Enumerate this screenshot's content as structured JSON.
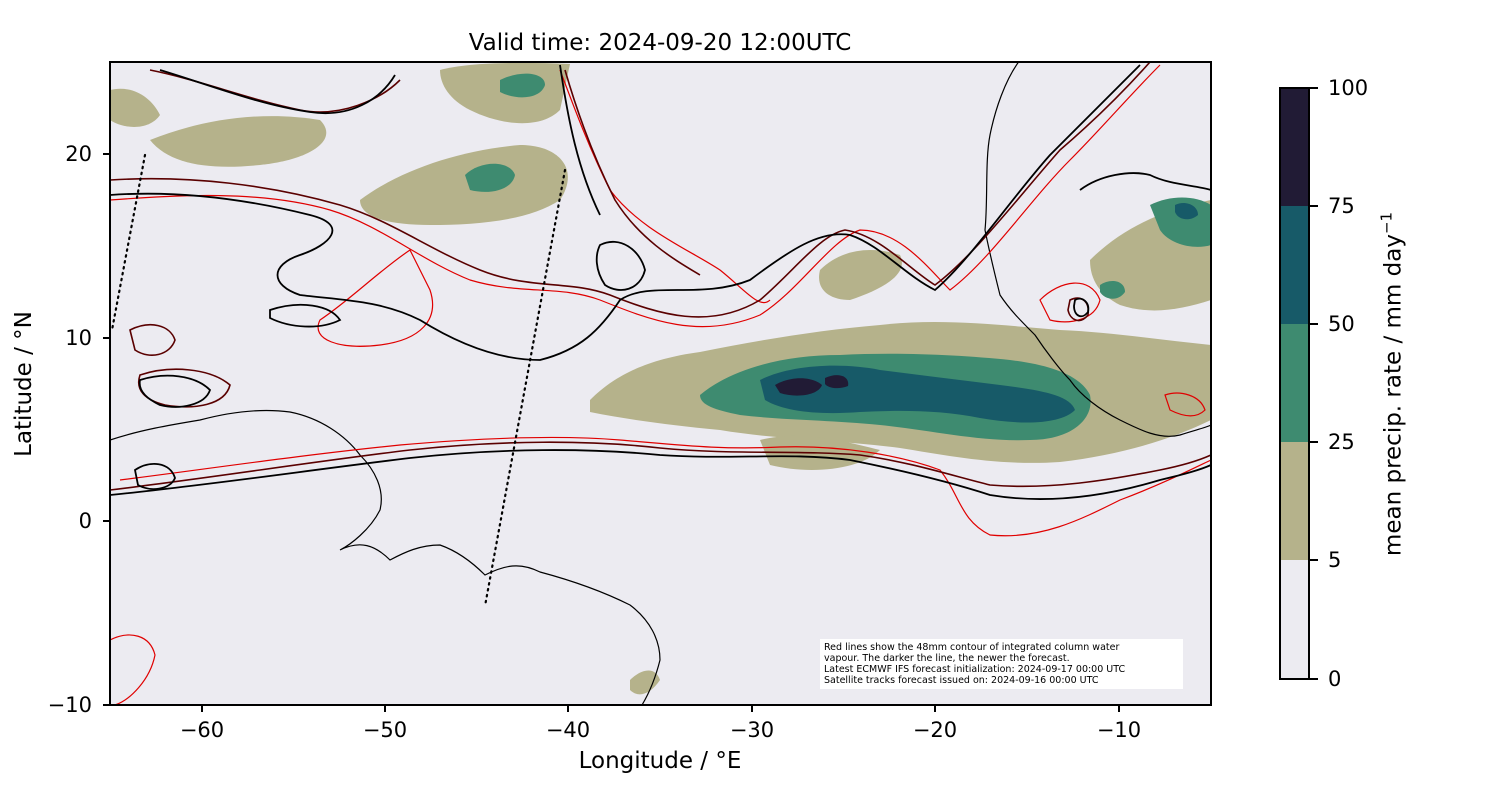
{
  "title": "Valid time: 2024-09-20 12:00UTC",
  "axes": {
    "xlabel": "Longitude / °E",
    "ylabel": "Latitude / °N",
    "xlim": [
      -65,
      -5
    ],
    "ylim": [
      -10,
      25
    ],
    "xticks": [
      "−60",
      "−50",
      "−40",
      "−30",
      "−20",
      "−10"
    ],
    "yticks": [
      "20",
      "10",
      "0",
      "−10"
    ]
  },
  "colorbar": {
    "label": "mean precip. rate / mm day",
    "label_exponent": "−1",
    "ticks": [
      "100",
      "75",
      "50",
      "25",
      "5",
      "0"
    ],
    "levels": [
      0,
      5,
      25,
      50,
      75,
      100
    ],
    "colors": [
      "#ecebf1",
      "#b5b28b",
      "#3e8b70",
      "#175a68",
      "#211b35"
    ]
  },
  "annotation": {
    "lines": [
      "Red lines show the 48mm contour of integrated column water",
      "vapour. The darker the line, the newer the forecast.",
      "Latest ECMWF IFS forecast initialization: 2024-09-17 00:00 UTC",
      "Satellite tracks forecast issued on: 2024-09-16 00:00 UTC"
    ]
  },
  "colors": {
    "map_background": "#ecebf1",
    "contour_new": "#000000",
    "contour_mid": "#5a0000",
    "contour_old": "#e00000",
    "coastline": "#000000"
  }
}
